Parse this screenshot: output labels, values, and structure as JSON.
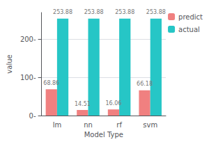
{
  "chart_data": {
    "type": "bar",
    "categories": [
      "lm",
      "nn",
      "rf",
      "svm"
    ],
    "series": [
      {
        "name": "predict",
        "color": "#F08080",
        "values": [
          68.86,
          14.51,
          16.06,
          66.18
        ]
      },
      {
        "name": "actual",
        "color": "#26C6C6",
        "values": [
          253.88,
          253.88,
          253.88,
          253.88
        ]
      }
    ],
    "xlabel": "Model Type",
    "ylabel": "value",
    "ylim": [
      0,
      270
    ],
    "yticks": [
      {
        "value": 0,
        "label": "0-"
      },
      {
        "value": 100,
        "label": "100-"
      },
      {
        "value": 200,
        "label": "200-"
      }
    ],
    "grid": true,
    "legend": "right",
    "data_labels": true
  }
}
